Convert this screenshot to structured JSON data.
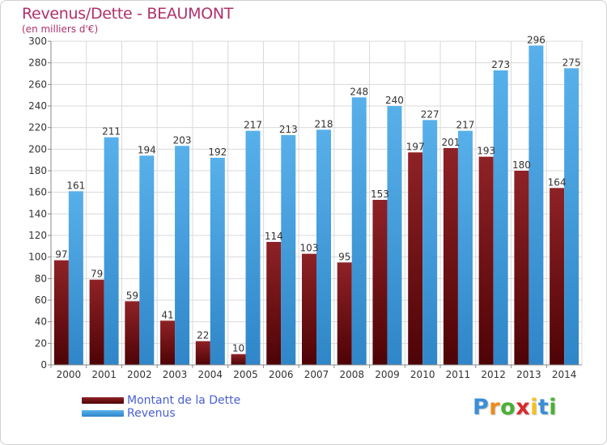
{
  "header": {
    "title": "Revenus/Dette - BEAUMONT",
    "subtitle": "(en milliers d'€)"
  },
  "colors": {
    "dette": "#7a0e12",
    "revenus": "#3d9fe0",
    "title": "#b0306c",
    "legend_text": "#4a5fd1",
    "grid": "#d9d9d9"
  },
  "chart_data": {
    "type": "bar",
    "title": "Revenus/Dette - BEAUMONT",
    "subtitle": "(en milliers d'€)",
    "categories": [
      "2000",
      "2001",
      "2002",
      "2003",
      "2004",
      "2005",
      "2006",
      "2007",
      "2008",
      "2009",
      "2010",
      "2011",
      "2012",
      "2013",
      "2014"
    ],
    "series": [
      {
        "name": "Montant de la Dette",
        "values": [
          97,
          79,
          59,
          41,
          22,
          10,
          114,
          103,
          95,
          153,
          197,
          201,
          193,
          180,
          164
        ]
      },
      {
        "name": "Revenus",
        "values": [
          161,
          211,
          194,
          203,
          192,
          217,
          213,
          218,
          248,
          240,
          227,
          217,
          273,
          296,
          275
        ]
      }
    ],
    "ylim": [
      0,
      300
    ],
    "ytick_step": 20,
    "grid": true,
    "legend": "bottom-left"
  },
  "legend": {
    "items": [
      "Montant de la Dette",
      "Revenus"
    ]
  },
  "logo": {
    "letters": [
      "P",
      "r",
      "o",
      "x",
      "i",
      "t",
      "i"
    ],
    "colors": [
      "#3a8fd6",
      "#f08a1c",
      "#49b034",
      "#d92b2b",
      "#f3c21f",
      "#3a8fd6",
      "#49b034"
    ]
  }
}
